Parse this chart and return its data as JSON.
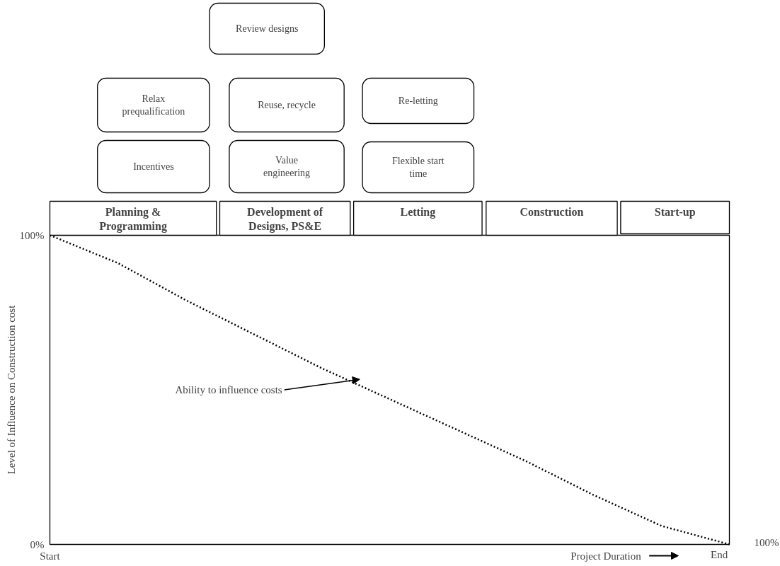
{
  "chart_data": {
    "type": "line",
    "ylabel": "Level of Influence on Construction cost",
    "xlabel": "Project Duration",
    "categories": [
      null,
      null,
      null,
      null,
      null,
      null,
      null,
      null,
      null,
      null,
      null
    ],
    "series": [
      {
        "color": "#000000",
        "values": [
          100,
          91,
          79,
          68,
          57,
          47,
          37,
          27,
          16,
          6,
          0
        ]
      }
    ],
    "ylim": [
      0,
      100
    ],
    "yticks": [
      {
        "value": 0,
        "label": "0%"
      },
      {
        "value": 100,
        "label": "100%"
      }
    ],
    "marker": "none",
    "line_style": "dotted",
    "annotations": [
      "Planning &\nProgramming",
      "Development of\nDesigns, PS&E",
      "Letting",
      "Construction",
      "Start-up",
      "Incentives",
      "Relax\nprequalification",
      "Value\nengineering",
      "Reuse, recycle",
      "Review designs",
      "Flexible start\ntime",
      "Re-letting",
      "Ability to influence costs",
      "Start",
      "End",
      "100%"
    ]
  }
}
